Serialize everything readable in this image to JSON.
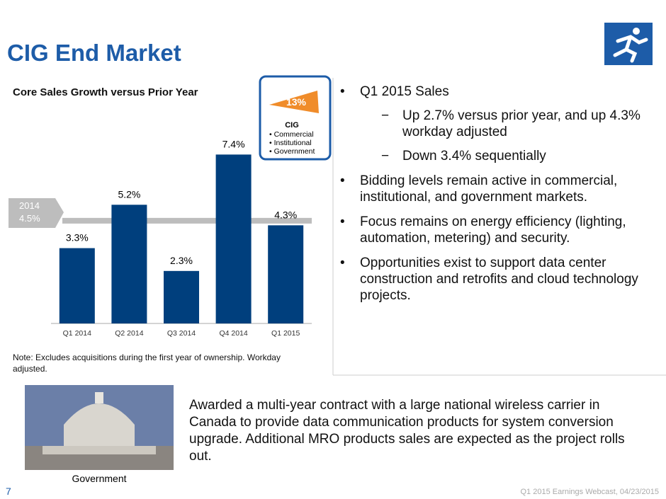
{
  "title": "CIG End Market",
  "chart_data": {
    "type": "bar",
    "title": "Core Sales Growth versus Prior Year",
    "categories": [
      "Q1 2014",
      "Q2 2014",
      "Q3 2014",
      "Q4 2014",
      "Q1 2015"
    ],
    "values": [
      3.3,
      5.2,
      2.3,
      7.4,
      4.3
    ],
    "value_labels": [
      "3.3%",
      "5.2%",
      "2.3%",
      "7.4%",
      "4.3%"
    ],
    "color": "#003f7d",
    "ylim": [
      0,
      8
    ],
    "reference_line": {
      "name": "2014",
      "value": 4.5,
      "label": "4.5%",
      "color": "#bdbdbd"
    },
    "note": "Note:  Excludes acquisitions during the first year of ownership. Workday adjusted."
  },
  "badge": {
    "share": "13%",
    "title": "CIG",
    "items": [
      "Commercial",
      "Institutional",
      "Government"
    ]
  },
  "bullets": [
    {
      "text": "Q1 2015 Sales",
      "subs": [
        "Up 2.7% versus prior year, and up 4.3% workday adjusted",
        "Down 3.4% sequentially"
      ]
    },
    {
      "text": "Bidding levels remain active in commercial, institutional, and government markets.",
      "subs": []
    },
    {
      "text": "Focus remains on energy efficiency (lighting, automation, metering) and security.",
      "subs": []
    },
    {
      "text": "Opportunities exist to support data center construction and retrofits and cloud technology projects.",
      "subs": []
    }
  ],
  "photo_caption": "Government",
  "highlight": "Awarded a multi-year contract with a large national wireless carrier in Canada to provide data communication products for system conversion upgrade.  Additional MRO products sales are expected as the project rolls out.",
  "page_number": "7",
  "footer": "Q1 2015 Earnings Webcast, 04/23/2015"
}
